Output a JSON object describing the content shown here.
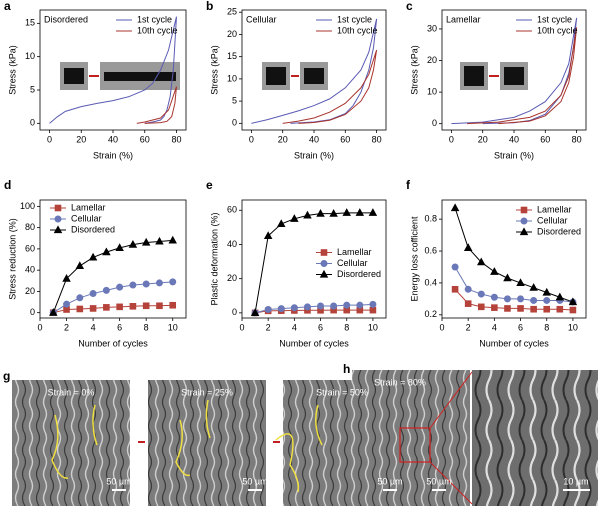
{
  "chart_data": [
    {
      "type": "line",
      "panel": "a",
      "title": "Disordered",
      "xlabel": "Strain (%)",
      "ylabel": "Stress (kPa)",
      "xlim": [
        -6,
        86
      ],
      "ylim": [
        -1,
        17
      ],
      "xticks": [
        0,
        20,
        40,
        60,
        80
      ],
      "yticks": [
        0,
        5,
        10,
        15
      ],
      "legend": "upper right",
      "series": [
        {
          "name": "1st cycle",
          "color": "#5a5ab4",
          "x": [
            0,
            5,
            10,
            20,
            30,
            40,
            50,
            60,
            65,
            70,
            75,
            80,
            78,
            76,
            74,
            72,
            70,
            65,
            60
          ],
          "values": [
            0,
            1,
            1.8,
            2.5,
            3,
            3.4,
            4,
            5,
            6,
            8,
            11,
            16,
            8,
            4,
            2,
            1,
            0.5,
            0.2,
            0
          ]
        },
        {
          "name": "10th cycle",
          "color": "#a8342c",
          "x": [
            55,
            60,
            70,
            75,
            80,
            79,
            77,
            74,
            70,
            60
          ],
          "values": [
            0,
            0.2,
            0.8,
            2,
            5.5,
            3,
            1,
            0.3,
            0.1,
            0
          ]
        }
      ]
    },
    {
      "type": "line",
      "panel": "b",
      "title": "Cellular",
      "xlabel": "Strain (%)",
      "ylabel": "Stress (kPa)",
      "xlim": [
        -6,
        86
      ],
      "ylim": [
        -1.5,
        25.5
      ],
      "xticks": [
        0,
        20,
        40,
        60,
        80
      ],
      "yticks": [
        0,
        5,
        10,
        15,
        20,
        25
      ],
      "legend": "upper right",
      "series": [
        {
          "name": "1st cycle",
          "color": "#5a5ab4",
          "x": [
            0,
            10,
            20,
            30,
            40,
            50,
            60,
            70,
            75,
            80,
            78,
            75,
            70,
            65,
            60,
            50,
            40,
            30,
            25
          ],
          "values": [
            0,
            0.8,
            1.8,
            2.8,
            4,
            5.5,
            8,
            12,
            16,
            23.5,
            17,
            12,
            7,
            4,
            2.2,
            0.8,
            0.3,
            0.1,
            0
          ]
        },
        {
          "name": "10th cycle",
          "color": "#a8342c",
          "x": [
            20,
            30,
            40,
            50,
            60,
            70,
            75,
            80,
            78,
            75,
            70,
            60,
            50,
            40,
            30
          ],
          "values": [
            0,
            0.5,
            1.2,
            2.5,
            4.5,
            8,
            11,
            16.5,
            12,
            8,
            5,
            2,
            0.7,
            0.2,
            0
          ]
        }
      ]
    },
    {
      "type": "line",
      "panel": "c",
      "title": "Lamellar",
      "xlabel": "Strain (%)",
      "ylabel": "Stress (kPa)",
      "xlim": [
        -6,
        86
      ],
      "ylim": [
        -2,
        36
      ],
      "xticks": [
        0,
        20,
        40,
        60,
        80
      ],
      "yticks": [
        0,
        10,
        20,
        30
      ],
      "legend": "upper right",
      "series": [
        {
          "name": "1st cycle",
          "color": "#5a5ab4",
          "x": [
            0,
            20,
            40,
            50,
            60,
            70,
            75,
            80,
            78,
            75,
            70,
            60,
            50,
            40,
            20
          ],
          "values": [
            0,
            0.5,
            2,
            4,
            7,
            13,
            19,
            33.5,
            24,
            16,
            9,
            3,
            1,
            0.3,
            0
          ]
        },
        {
          "name": "10th cycle",
          "color": "#a8342c",
          "x": [
            10,
            30,
            50,
            60,
            70,
            75,
            80,
            78,
            75,
            70,
            60,
            50,
            30
          ],
          "values": [
            0,
            0.5,
            2,
            4,
            9,
            15,
            30.5,
            21,
            13,
            7,
            2.5,
            0.8,
            0
          ]
        }
      ]
    },
    {
      "type": "line",
      "panel": "d",
      "xlabel": "Number of cycles",
      "ylabel": "Stress reduction (%)",
      "x": [
        1,
        2,
        3,
        4,
        5,
        6,
        7,
        8,
        9,
        10
      ],
      "xlim": [
        0,
        11
      ],
      "ylim": [
        -5,
        106
      ],
      "xticks": [
        0,
        2,
        4,
        6,
        8,
        10
      ],
      "yticks": [
        0,
        20,
        40,
        60,
        80,
        100
      ],
      "legend": "upper left",
      "series": [
        {
          "name": "Lamellar",
          "color": "#b5433a",
          "marker": "square",
          "values": [
            0,
            3,
            3.5,
            4,
            5,
            5.5,
            6,
            6.5,
            6.5,
            7
          ]
        },
        {
          "name": "Cellular",
          "color": "#6a78b8",
          "marker": "circle",
          "values": [
            0,
            8,
            14,
            18,
            21,
            24,
            26,
            27,
            28,
            29
          ]
        },
        {
          "name": "Disordered",
          "color": "#000000",
          "marker": "triangle",
          "values": [
            0,
            32,
            44,
            52,
            57,
            61,
            64,
            66,
            67,
            68
          ]
        }
      ]
    },
    {
      "type": "line",
      "panel": "e",
      "xlabel": "Number of cycles",
      "ylabel": "Plastic deformation (%)",
      "x": [
        1,
        2,
        3,
        4,
        5,
        6,
        7,
        8,
        9,
        10
      ],
      "xlim": [
        0,
        11
      ],
      "ylim": [
        -3,
        66
      ],
      "xticks": [
        0,
        2,
        4,
        6,
        8,
        10
      ],
      "yticks": [
        0,
        20,
        40,
        60
      ],
      "legend": "center right",
      "series": [
        {
          "name": "Lamellar",
          "color": "#b5433a",
          "marker": "square",
          "values": [
            0,
            1.2,
            1.3,
            1.4,
            1.5,
            1.5,
            1.6,
            1.6,
            1.6,
            1.6
          ]
        },
        {
          "name": "Cellular",
          "color": "#6a78b8",
          "marker": "circle",
          "values": [
            0,
            2,
            2.5,
            3,
            3.5,
            4,
            4,
            4.5,
            4.5,
            5
          ]
        },
        {
          "name": "Disordered",
          "color": "#000000",
          "marker": "triangle",
          "values": [
            0,
            45,
            52,
            55,
            57,
            58,
            58,
            58.5,
            58.5,
            58.5
          ]
        }
      ]
    },
    {
      "type": "line",
      "panel": "f",
      "xlabel": "Number of cycles",
      "ylabel": "Energy loss cofficient",
      "x": [
        1,
        2,
        3,
        4,
        5,
        6,
        7,
        8,
        9,
        10
      ],
      "xlim": [
        0,
        11
      ],
      "ylim": [
        0.18,
        0.92
      ],
      "xticks": [
        0,
        2,
        4,
        6,
        8,
        10
      ],
      "yticks": [
        0.2,
        0.4,
        0.6,
        0.8
      ],
      "legend": "upper right",
      "series": [
        {
          "name": "Lamellar",
          "color": "#b5433a",
          "marker": "square",
          "values": [
            0.36,
            0.27,
            0.25,
            0.245,
            0.24,
            0.24,
            0.235,
            0.235,
            0.235,
            0.23
          ]
        },
        {
          "name": "Cellular",
          "color": "#6a78b8",
          "marker": "circle",
          "values": [
            0.5,
            0.36,
            0.33,
            0.31,
            0.3,
            0.3,
            0.29,
            0.29,
            0.29,
            0.28
          ]
        },
        {
          "name": "Disordered",
          "color": "#000000",
          "marker": "triangle",
          "values": [
            0.87,
            0.62,
            0.53,
            0.47,
            0.43,
            0.4,
            0.37,
            0.34,
            0.31,
            0.28
          ]
        }
      ]
    }
  ],
  "images": [
    {
      "panel": "g",
      "captions": [
        "Strain = 0%",
        "Strain = 25%",
        "Strain = 50%"
      ],
      "scale_bars": [
        "50 µm",
        "50 µm",
        "50 µm"
      ]
    },
    {
      "panel": "h",
      "captions": [
        "Strain = 80%"
      ],
      "scale_bars": [
        "50 µm",
        "10 µm"
      ]
    }
  ]
}
